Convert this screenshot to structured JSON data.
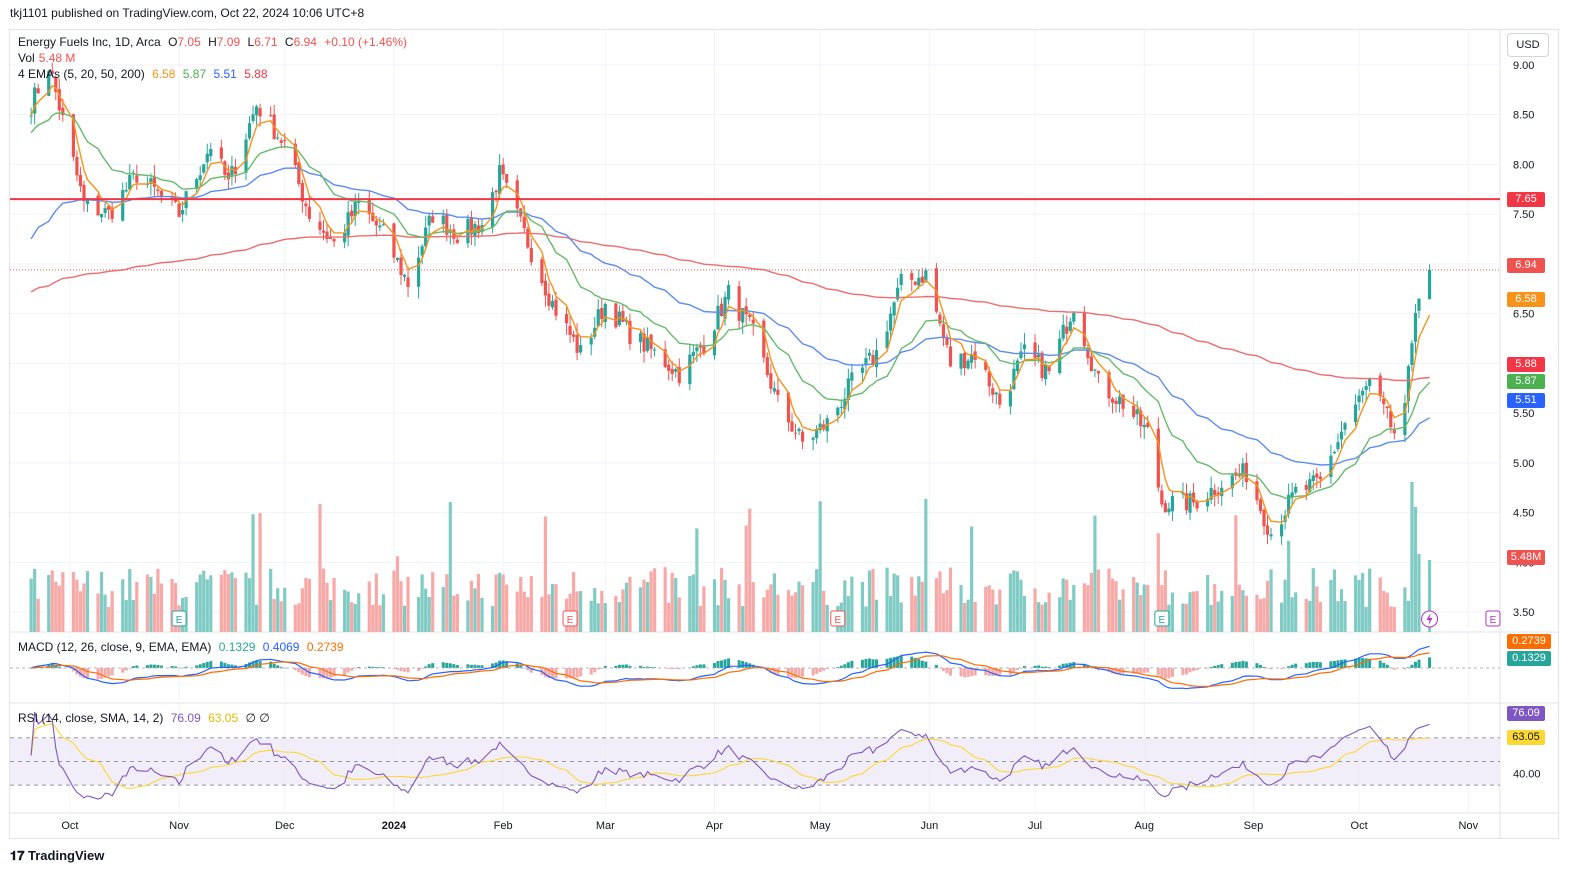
{
  "header": {
    "published": "tkj1101 published on TradingView.com, Oct 22, 2024 10:06 UTC+8"
  },
  "legend": {
    "symbol": "Energy Fuels Inc, 1D, Arca",
    "o_label": "O",
    "o_val": "7.05",
    "h_label": "H",
    "h_val": "7.09",
    "l_label": "L",
    "l_val": "6.71",
    "c_label": "C",
    "c_val": "6.94",
    "change": "+0.10 (+1.46%)",
    "vol_label": "Vol",
    "vol_val": "5.48 M",
    "ema_label": "4 EMAs (5, 20, 50, 200)",
    "ema5": "6.58",
    "ema20": "5.87",
    "ema50": "5.51",
    "ema200": "5.88",
    "macd_label": "MACD (12, 26, close, 9, EMA, EMA)",
    "macd_hist": "0.1329",
    "macd_line": "0.4069",
    "macd_signal": "0.2739",
    "rsi_label": "RSI (14, close, SMA, 14, 2)",
    "rsi_val": "76.09",
    "rsi_ma": "63.05",
    "rsi_extra": "∅ ∅"
  },
  "currency": "USD",
  "price_labels": {
    "hline": "7.65",
    "last": "6.94",
    "ema5": "6.58",
    "ema200": "5.88",
    "ema20": "5.87",
    "ema50": "5.51",
    "volume": "5.48M",
    "macd_signal": "0.2739",
    "macd_hist": "0.1329",
    "rsi": "76.09",
    "rsi_ma": "63.05"
  },
  "footer": {
    "brand": "TradingView"
  },
  "colors": {
    "up": "#26a69a",
    "down": "#ef5350",
    "ema5": "#f7931a",
    "ema20": "#66bb6a",
    "ema50": "#5b8def",
    "ema200": "#f06c6c",
    "hline": "#f23645",
    "macd": "#2962ff",
    "signal": "#ff6d00",
    "rsi": "#7e57c2",
    "rsi_ma": "#fdd835"
  },
  "icons": [
    "earnings-marker-icon",
    "dividend-marker-icon",
    "lightning-icon"
  ],
  "chart_data": [
    {
      "type": "candlestick",
      "title": "Energy Fuels Inc, 1D, Arca",
      "x_ticks": [
        "Oct",
        "Nov",
        "Dec",
        "2024",
        "Feb",
        "Mar",
        "Apr",
        "May",
        "Jun",
        "Jul",
        "Aug",
        "Sep",
        "Oct",
        "Nov"
      ],
      "y_ticks": [
        "9.00",
        "8.50",
        "8.00",
        "7.50",
        "7.00",
        "6.50",
        "6.00",
        "5.50",
        "5.00",
        "4.50",
        "4.00",
        "3.50"
      ],
      "ylim": [
        3.3,
        9.3
      ],
      "horizontal_line": 7.65,
      "last_close": 6.94,
      "anchors": [
        [
          "2023-09-20",
          8.6
        ],
        [
          "2023-09-25",
          9.0
        ],
        [
          "2023-10-05",
          7.6
        ],
        [
          "2023-10-12",
          7.5
        ],
        [
          "2023-10-20",
          7.9
        ],
        [
          "2023-11-01",
          7.5
        ],
        [
          "2023-11-10",
          8.2
        ],
        [
          "2023-11-15",
          7.8
        ],
        [
          "2023-11-23",
          8.6
        ],
        [
          "2023-12-01",
          8.2
        ],
        [
          "2023-12-08",
          7.5
        ],
        [
          "2023-12-15",
          7.2
        ],
        [
          "2023-12-22",
          7.6
        ],
        [
          "2023-12-29",
          7.3
        ],
        [
          "2024-01-05",
          6.8
        ],
        [
          "2024-01-12",
          7.5
        ],
        [
          "2024-01-19",
          7.3
        ],
        [
          "2024-01-26",
          7.4
        ],
        [
          "2024-01-31",
          7.9
        ],
        [
          "2024-02-07",
          7.3
        ],
        [
          "2024-02-15",
          6.6
        ],
        [
          "2024-02-23",
          6.1
        ],
        [
          "2024-03-01",
          6.6
        ],
        [
          "2024-03-08",
          6.3
        ],
        [
          "2024-03-15",
          6.1
        ],
        [
          "2024-03-22",
          5.9
        ],
        [
          "2024-03-29",
          6.2
        ],
        [
          "2024-04-05",
          6.7
        ],
        [
          "2024-04-12",
          6.3
        ],
        [
          "2024-04-19",
          5.6
        ],
        [
          "2024-04-26",
          5.2
        ],
        [
          "2024-05-03",
          5.4
        ],
        [
          "2024-05-10",
          5.8
        ],
        [
          "2024-05-17",
          6.1
        ],
        [
          "2024-05-24",
          6.8
        ],
        [
          "2024-05-31",
          6.9
        ],
        [
          "2024-06-07",
          6.0
        ],
        [
          "2024-06-14",
          6.1
        ],
        [
          "2024-06-21",
          5.6
        ],
        [
          "2024-06-28",
          6.1
        ],
        [
          "2024-07-05",
          5.9
        ],
        [
          "2024-07-12",
          6.6
        ],
        [
          "2024-07-19",
          5.8
        ],
        [
          "2024-07-26",
          5.6
        ],
        [
          "2024-08-02",
          5.3
        ],
        [
          "2024-08-06",
          4.6
        ],
        [
          "2024-08-15",
          4.6
        ],
        [
          "2024-08-23",
          4.8
        ],
        [
          "2024-08-30",
          4.9
        ],
        [
          "2024-09-06",
          4.3
        ],
        [
          "2024-09-13",
          4.7
        ],
        [
          "2024-09-20",
          4.8
        ],
        [
          "2024-09-27",
          5.4
        ],
        [
          "2024-10-04",
          5.8
        ],
        [
          "2024-10-11",
          5.3
        ],
        [
          "2024-10-14",
          5.5
        ],
        [
          "2024-10-17",
          6.6
        ],
        [
          "2024-10-21",
          6.94
        ]
      ],
      "series": [
        {
          "name": "EMA 5",
          "last": 6.58
        },
        {
          "name": "EMA 20",
          "last": 5.87
        },
        {
          "name": "EMA 50",
          "last": 5.51
        },
        {
          "name": "EMA 200",
          "last": 5.88
        }
      ],
      "volume_last": "5.48M"
    },
    {
      "type": "line",
      "title": "MACD (12, 26, close, 9, EMA, EMA)",
      "series": [
        {
          "name": "MACD",
          "last": 0.4069
        },
        {
          "name": "Signal",
          "last": 0.2739
        },
        {
          "name": "Histogram",
          "last": 0.1329
        }
      ]
    },
    {
      "type": "line",
      "title": "RSI (14, close, SMA, 14, 2)",
      "y_ticks": [
        "40.00"
      ],
      "bands": [
        70,
        50,
        30
      ],
      "series": [
        {
          "name": "RSI",
          "last": 76.09
        },
        {
          "name": "RSI-based MA",
          "last": 63.05
        }
      ]
    }
  ]
}
